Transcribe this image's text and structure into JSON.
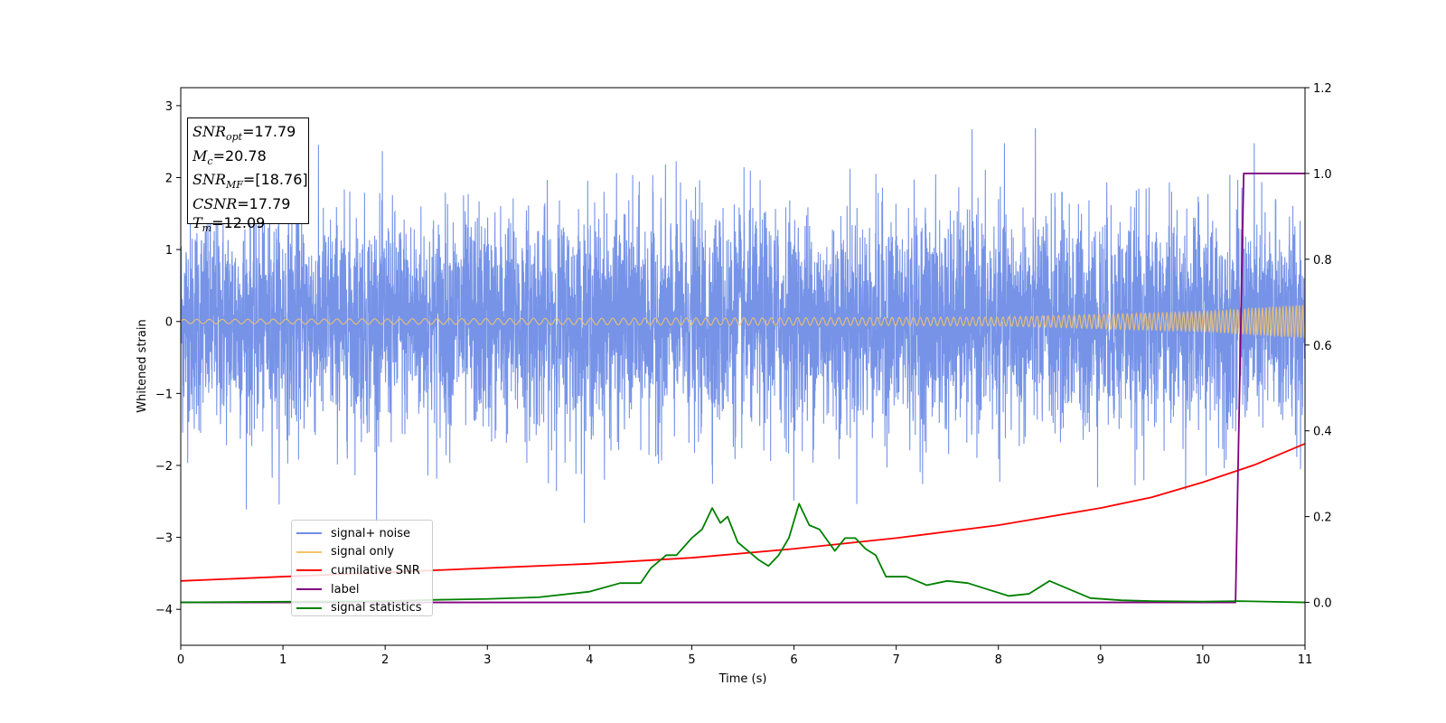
{
  "chart_data": {
    "type": "line",
    "title": "",
    "xlabel": "Time (s)",
    "ylabel": "Whitened strain",
    "xlim": [
      0,
      11
    ],
    "ylim": [
      -4.5,
      3.25
    ],
    "y2lim": [
      -0.1,
      1.2
    ],
    "xticks": [
      "0",
      "1",
      "2",
      "3",
      "4",
      "5",
      "6",
      "7",
      "8",
      "9",
      "10",
      "11"
    ],
    "yticks": [
      "3",
      "2",
      "1",
      "0",
      "−1",
      "−2",
      "−3",
      "−4"
    ],
    "y2ticks": [
      "1.2",
      "1.0",
      "0.8",
      "0.6",
      "0.4",
      "0.2",
      "0.0"
    ],
    "grid": false,
    "legend_position": "lower-left",
    "annotation": {
      "snr_opt": "17.79",
      "mc": "20.78",
      "snr_mf": "[18.76]",
      "csnr": "17.79",
      "tm": "12.09"
    },
    "series": [
      {
        "name": "signal+ noise",
        "color": "#6f8de6",
        "axis": "left",
        "noise_std_approx": 0.75,
        "envelope": [
          -2.8,
          2.92
        ]
      },
      {
        "name": "signal only",
        "color": "#f5c469",
        "axis": "left",
        "amplitude": [
          [
            0,
            0.03
          ],
          [
            8,
            0.06
          ],
          [
            10,
            0.14
          ],
          [
            11,
            0.23
          ]
        ]
      },
      {
        "name": "cumilative SNR",
        "color": "#ff0000",
        "axis": "right",
        "x": [
          0,
          1,
          2,
          3,
          4,
          5,
          6,
          7,
          8,
          9,
          9.5,
          10,
          10.5,
          11
        ],
        "y": [
          0.05,
          0.06,
          0.07,
          0.08,
          0.09,
          0.104,
          0.125,
          0.15,
          0.18,
          0.22,
          0.245,
          0.28,
          0.32,
          0.37
        ]
      },
      {
        "name": "label",
        "color": "#800080",
        "axis": "right",
        "x": [
          0,
          10.32,
          10.4,
          11
        ],
        "y": [
          0,
          0,
          1,
          1
        ]
      },
      {
        "name": "signal statistics",
        "color": "#008000",
        "axis": "right",
        "x": [
          0,
          2,
          2.5,
          3,
          3.5,
          4,
          4.3,
          4.5,
          4.6,
          4.75,
          4.85,
          5.0,
          5.1,
          5.2,
          5.28,
          5.35,
          5.45,
          5.55,
          5.65,
          5.75,
          5.85,
          5.95,
          6.05,
          6.15,
          6.25,
          6.4,
          6.5,
          6.6,
          6.7,
          6.8,
          6.9,
          7.0,
          7.1,
          7.3,
          7.5,
          7.7,
          7.9,
          8.1,
          8.3,
          8.5,
          8.7,
          8.9,
          9.2,
          9.5,
          10.0,
          10.35,
          11
        ],
        "y": [
          0,
          0.003,
          0.006,
          0.008,
          0.012,
          0.025,
          0.045,
          0.045,
          0.08,
          0.11,
          0.11,
          0.15,
          0.17,
          0.22,
          0.185,
          0.2,
          0.14,
          0.12,
          0.1,
          0.085,
          0.11,
          0.15,
          0.23,
          0.18,
          0.17,
          0.12,
          0.15,
          0.15,
          0.125,
          0.11,
          0.06,
          0.06,
          0.06,
          0.04,
          0.05,
          0.045,
          0.03,
          0.015,
          0.02,
          0.05,
          0.03,
          0.01,
          0.005,
          0.003,
          0.002,
          0.003,
          0.0
        ]
      }
    ]
  },
  "legend": {
    "items": [
      {
        "label": "signal+ noise",
        "color": "#6f8de6"
      },
      {
        "label": "signal only",
        "color": "#f5c469"
      },
      {
        "label": "cumilative SNR",
        "color": "#ff0000"
      },
      {
        "label": "label",
        "color": "#800080"
      },
      {
        "label": "signal statistics",
        "color": "#008000"
      }
    ]
  }
}
